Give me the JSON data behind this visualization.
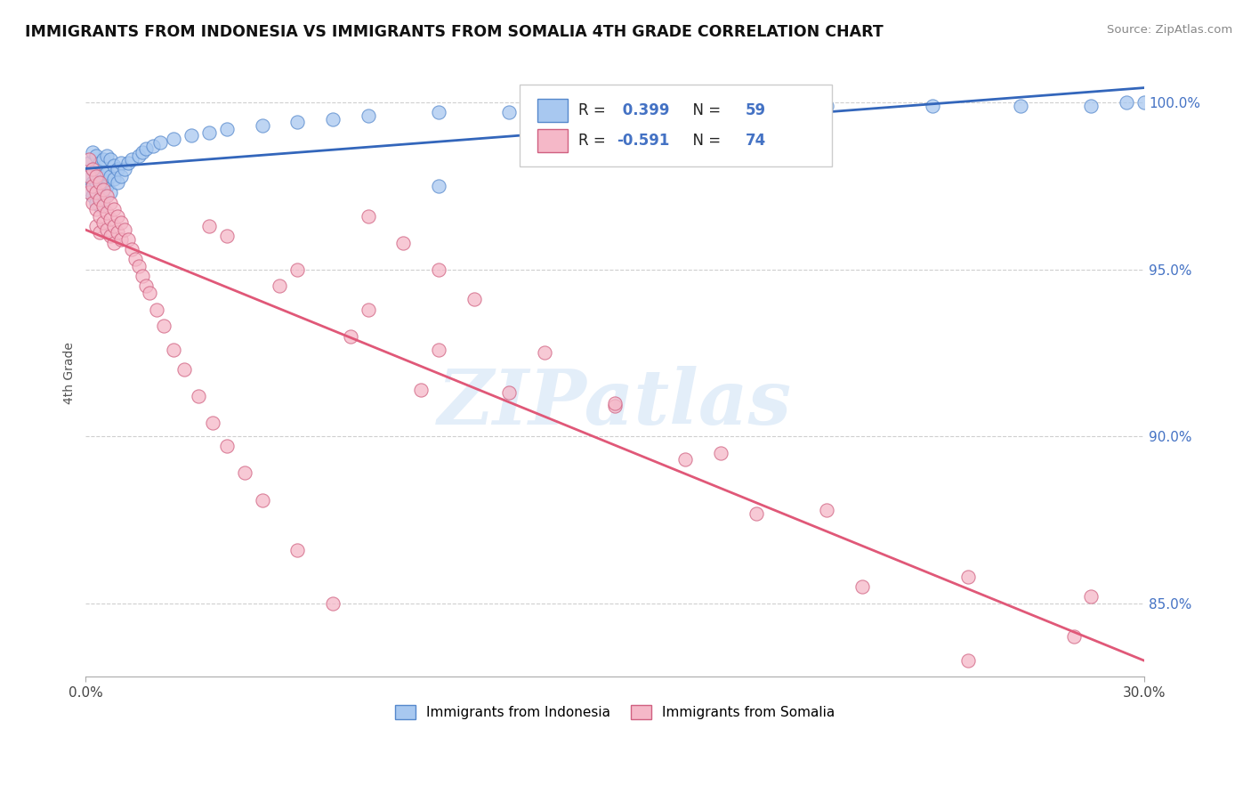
{
  "title": "IMMIGRANTS FROM INDONESIA VS IMMIGRANTS FROM SOMALIA 4TH GRADE CORRELATION CHART",
  "source": "Source: ZipAtlas.com",
  "ylabel": "4th Grade",
  "xlim": [
    0.0,
    0.3
  ],
  "ylim": [
    0.828,
    1.01
  ],
  "ytick_values": [
    0.85,
    0.9,
    0.95,
    1.0
  ],
  "indonesia_color": "#a8c8f0",
  "indonesia_edge": "#5588cc",
  "somalia_color": "#f5b8c8",
  "somalia_edge": "#d06080",
  "indonesia_R": 0.399,
  "indonesia_N": 59,
  "somalia_R": -0.591,
  "somalia_N": 74,
  "trend_indonesia_color": "#3366bb",
  "trend_somalia_color": "#e05878",
  "watermark_text": "ZIPatlas",
  "stat_color": "#4472c4",
  "background_color": "#ffffff",
  "grid_color": "#bbbbbb",
  "indonesia_x": [
    0.001,
    0.001,
    0.001,
    0.002,
    0.002,
    0.002,
    0.002,
    0.003,
    0.003,
    0.003,
    0.003,
    0.004,
    0.004,
    0.004,
    0.004,
    0.005,
    0.005,
    0.005,
    0.005,
    0.006,
    0.006,
    0.006,
    0.007,
    0.007,
    0.007,
    0.008,
    0.008,
    0.009,
    0.009,
    0.01,
    0.01,
    0.011,
    0.012,
    0.013,
    0.015,
    0.016,
    0.017,
    0.019,
    0.021,
    0.025,
    0.03,
    0.035,
    0.04,
    0.05,
    0.06,
    0.07,
    0.08,
    0.1,
    0.12,
    0.15,
    0.18,
    0.21,
    0.24,
    0.265,
    0.285,
    0.295,
    0.3,
    0.1,
    0.2
  ],
  "indonesia_y": [
    0.982,
    0.978,
    0.974,
    0.985,
    0.98,
    0.976,
    0.972,
    0.984,
    0.98,
    0.976,
    0.97,
    0.982,
    0.978,
    0.974,
    0.969,
    0.983,
    0.979,
    0.975,
    0.971,
    0.984,
    0.979,
    0.975,
    0.983,
    0.978,
    0.973,
    0.981,
    0.977,
    0.98,
    0.976,
    0.982,
    0.978,
    0.98,
    0.982,
    0.983,
    0.984,
    0.985,
    0.986,
    0.987,
    0.988,
    0.989,
    0.99,
    0.991,
    0.992,
    0.993,
    0.994,
    0.995,
    0.996,
    0.997,
    0.997,
    0.998,
    0.998,
    0.999,
    0.999,
    0.999,
    0.999,
    1.0,
    1.0,
    0.975,
    0.99
  ],
  "somalia_x": [
    0.001,
    0.001,
    0.001,
    0.002,
    0.002,
    0.002,
    0.003,
    0.003,
    0.003,
    0.003,
    0.004,
    0.004,
    0.004,
    0.004,
    0.005,
    0.005,
    0.005,
    0.006,
    0.006,
    0.006,
    0.007,
    0.007,
    0.007,
    0.008,
    0.008,
    0.008,
    0.009,
    0.009,
    0.01,
    0.01,
    0.011,
    0.012,
    0.013,
    0.014,
    0.015,
    0.016,
    0.017,
    0.018,
    0.02,
    0.022,
    0.025,
    0.028,
    0.032,
    0.036,
    0.04,
    0.045,
    0.05,
    0.06,
    0.07,
    0.08,
    0.09,
    0.1,
    0.11,
    0.13,
    0.15,
    0.17,
    0.19,
    0.22,
    0.25,
    0.04,
    0.06,
    0.08,
    0.1,
    0.12,
    0.035,
    0.055,
    0.075,
    0.095,
    0.285,
    0.15,
    0.18,
    0.21,
    0.25,
    0.28
  ],
  "somalia_y": [
    0.983,
    0.978,
    0.973,
    0.98,
    0.975,
    0.97,
    0.978,
    0.973,
    0.968,
    0.963,
    0.976,
    0.971,
    0.966,
    0.961,
    0.974,
    0.969,
    0.964,
    0.972,
    0.967,
    0.962,
    0.97,
    0.965,
    0.96,
    0.968,
    0.963,
    0.958,
    0.966,
    0.961,
    0.964,
    0.959,
    0.962,
    0.959,
    0.956,
    0.953,
    0.951,
    0.948,
    0.945,
    0.943,
    0.938,
    0.933,
    0.926,
    0.92,
    0.912,
    0.904,
    0.897,
    0.889,
    0.881,
    0.866,
    0.85,
    0.966,
    0.958,
    0.95,
    0.941,
    0.925,
    0.909,
    0.893,
    0.877,
    0.855,
    0.833,
    0.96,
    0.95,
    0.938,
    0.926,
    0.913,
    0.963,
    0.945,
    0.93,
    0.914,
    0.852,
    0.91,
    0.895,
    0.878,
    0.858,
    0.84
  ]
}
